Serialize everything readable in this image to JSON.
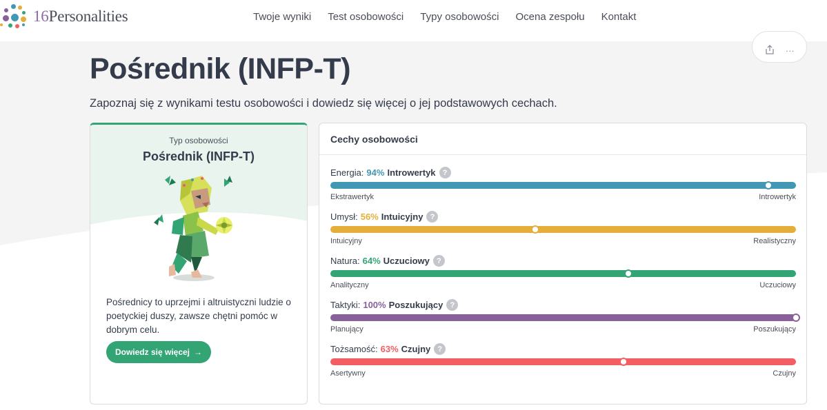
{
  "header": {
    "logo_num": "16",
    "logo_word": "Personalities",
    "nav": [
      "Twoje wyniki",
      "Test osobowości",
      "Typy osobowości",
      "Ocena zespołu",
      "Kontakt"
    ]
  },
  "actions": {
    "share_icon": "share-icon",
    "more_label": "···"
  },
  "page": {
    "title": "Pośrednik (INFP-T)",
    "subtitle": "Zapoznaj się z wynikami testu osobowości i dowiedz się więcej o jej podstawowych cechach."
  },
  "type_card": {
    "label": "Typ osobowości",
    "name": "Pośrednik (INFP-T)",
    "description": "Pośrednicy to uprzejmi i altruistyczni ludzie o poetyckiej duszy, zawsze chętni pomóc w dobrym celu.",
    "button": "Dowiedz się więcej",
    "button_arrow": "→",
    "accent": "#33a474"
  },
  "traits_card": {
    "title": "Cechy osobowości",
    "traits": [
      {
        "label": "Energia:",
        "pct": "94%",
        "name": "Introwertyk",
        "left": "Ekstrawertyk",
        "right": "Introwertyk",
        "color": "#4298b4",
        "position": 0.94
      },
      {
        "label": "Umysł:",
        "pct": "56%",
        "name": "Intuicyjny",
        "left": "Intuicyjny",
        "right": "Realistyczny",
        "color": "#e4ae3a",
        "position": 0.44
      },
      {
        "label": "Natura:",
        "pct": "64%",
        "name": "Uczuciowy",
        "left": "Analityczny",
        "right": "Uczuciowy",
        "color": "#33a474",
        "position": 0.64
      },
      {
        "label": "Taktyki:",
        "pct": "100%",
        "name": "Poszukujący",
        "left": "Planujący",
        "right": "Poszukujący",
        "color": "#88619a",
        "position": 1.0
      },
      {
        "label": "Tożsamość:",
        "pct": "63%",
        "name": "Czujny",
        "left": "Asertywny",
        "right": "Czujny",
        "color": "#f25e62",
        "position": 0.63
      }
    ],
    "help_icon": "?"
  }
}
